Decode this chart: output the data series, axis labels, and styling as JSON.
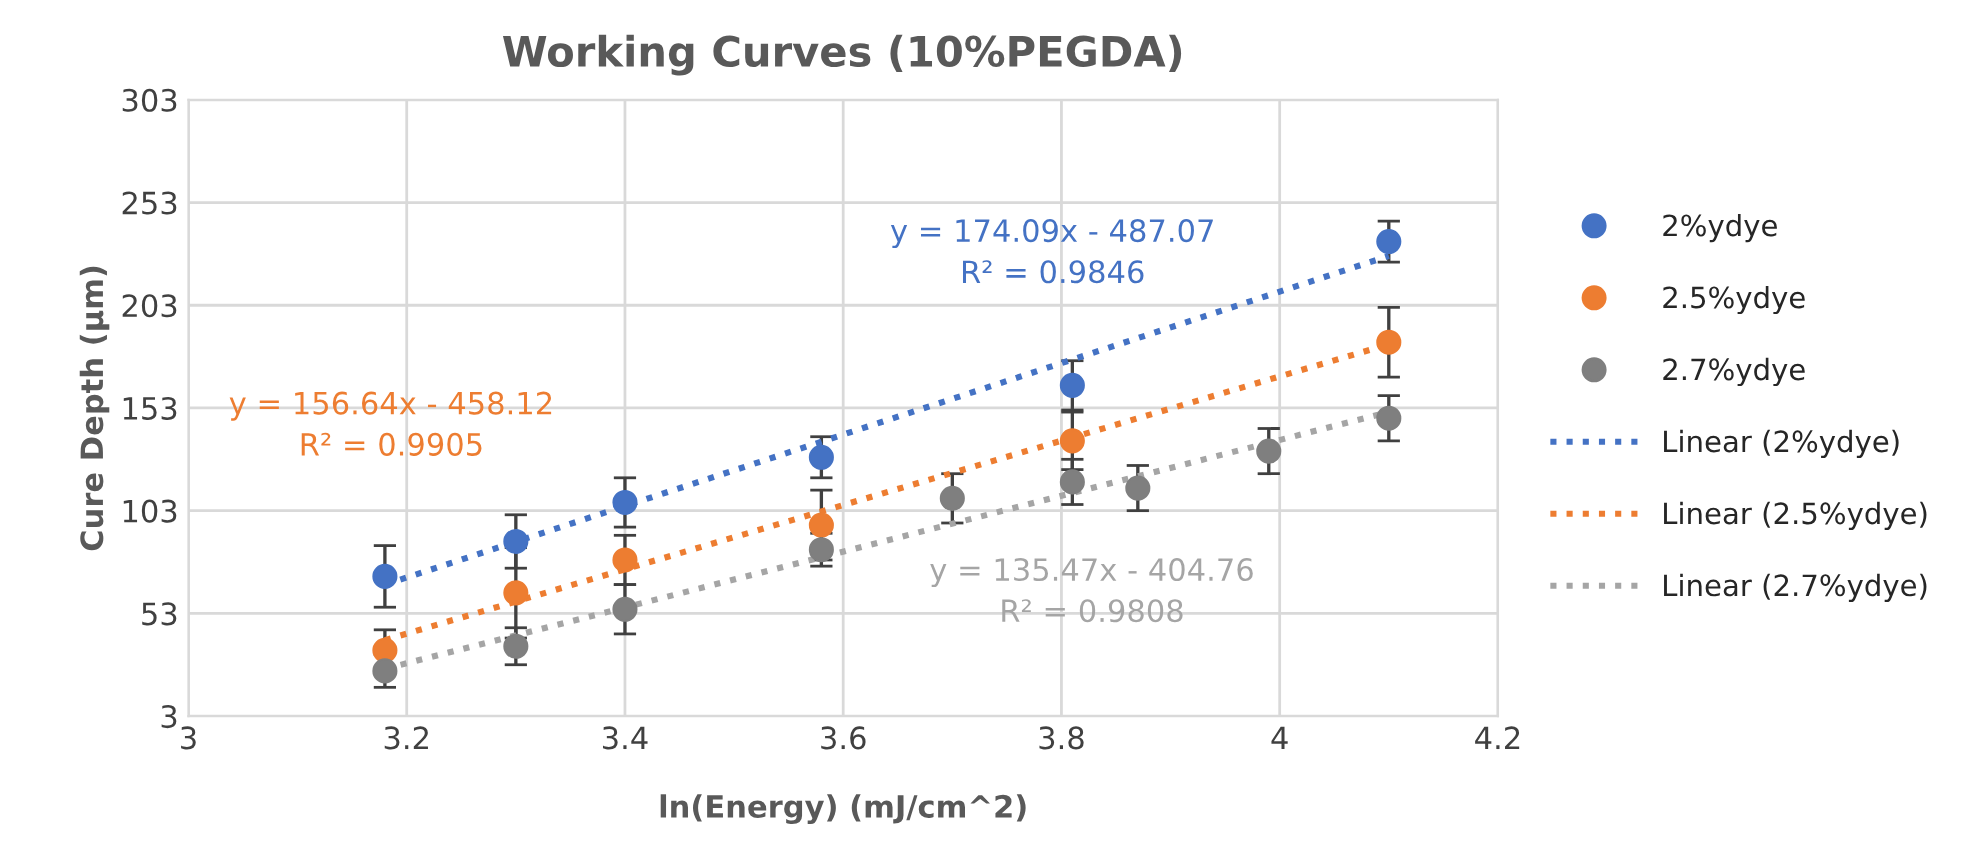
{
  "chart_data": {
    "type": "scatter",
    "title": "Working Curves (10%PEGDA)",
    "xlabel": "ln(Energy) (mJ/cm^2)",
    "ylabel": "Cure Depth (µm)",
    "xlim": [
      3,
      4.2
    ],
    "xticks": [
      3,
      3.2,
      3.4,
      3.6,
      3.8,
      4,
      4.2
    ],
    "ylim": [
      3,
      303
    ],
    "yticks": [
      3,
      53,
      103,
      153,
      203,
      253,
      303
    ],
    "grid": true,
    "legend": "right",
    "series": [
      {
        "name": "2%ydye",
        "marker": "circle",
        "color": "#4472c4",
        "x": [
          3.18,
          3.3,
          3.4,
          3.58,
          3.81,
          4.1
        ],
        "values": [
          71,
          88,
          107,
          129,
          164,
          234
        ],
        "errors": [
          15,
          13,
          12,
          10,
          12,
          10
        ]
      },
      {
        "name": "2.5%ydye",
        "marker": "circle",
        "color": "#ed7d31",
        "x": [
          3.18,
          3.3,
          3.4,
          3.58,
          3.81,
          4.1
        ],
        "values": [
          35,
          63,
          79,
          96,
          137,
          185
        ],
        "errors": [
          10,
          22,
          12,
          17,
          14,
          17
        ]
      },
      {
        "name": "2.7%ydye",
        "marker": "circle",
        "color": "#7f7f7f",
        "x": [
          3.18,
          3.3,
          3.4,
          3.58,
          3.7,
          3.81,
          3.87,
          3.99,
          4.1
        ],
        "values": [
          25,
          37,
          55,
          84,
          109,
          117,
          114,
          132,
          148
        ],
        "errors": [
          8,
          9,
          12,
          8,
          12,
          11,
          11,
          11,
          11
        ]
      },
      {
        "name": "Linear (2%ydye)",
        "type": "line",
        "marker": "none",
        "line_style": "dotted",
        "color": "#4472c4",
        "x": [
          3.18,
          4.1
        ],
        "values": [
          67,
          227
        ]
      },
      {
        "name": "Linear (2.5%ydye)",
        "type": "line",
        "marker": "none",
        "line_style": "dotted",
        "color": "#ed7d31",
        "x": [
          3.18,
          4.1
        ],
        "values": [
          40,
          184
        ]
      },
      {
        "name": "Linear (2.7%ydye)",
        "type": "line",
        "marker": "none",
        "line_style": "dotted",
        "color": "#a5a5a5",
        "x": [
          3.18,
          4.1
        ],
        "values": [
          26,
          151
        ]
      }
    ],
    "annotations": [
      "y = 174.09x - 487.07\nR² = 0.9846",
      "y = 156.64x - 458.12\nR² = 0.9905",
      "y = 135.47x - 404.76\nR² = 0.9808"
    ]
  }
}
